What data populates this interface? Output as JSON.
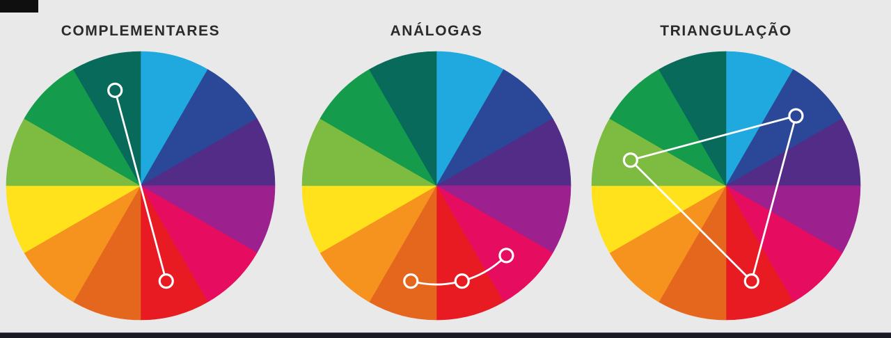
{
  "page": {
    "background_color": "#E9E9E9",
    "corner_mark_color": "#0F0F0F",
    "bottom_bar_color": "#1A1A25",
    "title_color": "#2B2B2B"
  },
  "wheel_style": {
    "radius": 193,
    "segment_count": 12,
    "segment_angle_deg": 30,
    "marker_orbit_radius": 142,
    "marker_circle_radius": 9.5,
    "marker_stroke_color": "#FFFFFF",
    "marker_stroke_width": 3.2,
    "connector_stroke_color": "#FFFFFF",
    "connector_stroke_width": 2.8
  },
  "wheel_segments": [
    {
      "name": "cyan",
      "color": "#1FA9DE",
      "start_angle": 0,
      "end_angle": 30
    },
    {
      "name": "navy-blue",
      "color": "#2B4798",
      "start_angle": 30,
      "end_angle": 60
    },
    {
      "name": "violet",
      "color": "#532C87",
      "start_angle": 60,
      "end_angle": 90
    },
    {
      "name": "purple-magenta",
      "color": "#9C208D",
      "start_angle": 90,
      "end_angle": 120
    },
    {
      "name": "crimson-pink",
      "color": "#E60D60",
      "start_angle": 120,
      "end_angle": 150
    },
    {
      "name": "red",
      "color": "#E81B23",
      "start_angle": 150,
      "end_angle": 180
    },
    {
      "name": "dark-orange",
      "color": "#E5671E",
      "start_angle": 180,
      "end_angle": 210
    },
    {
      "name": "orange",
      "color": "#F6921E",
      "start_angle": 210,
      "end_angle": 240
    },
    {
      "name": "yellow",
      "color": "#FFE11C",
      "start_angle": 240,
      "end_angle": 270
    },
    {
      "name": "lime-green",
      "color": "#7DBB41",
      "start_angle": 270,
      "end_angle": 300
    },
    {
      "name": "green",
      "color": "#149B4B",
      "start_angle": 300,
      "end_angle": 330
    },
    {
      "name": "dark-teal",
      "color": "#076A5B",
      "start_angle": 330,
      "end_angle": 360
    }
  ],
  "chart_data": [
    {
      "type": "pie",
      "title": "COMPLEMENTARES",
      "scheme": "complementary",
      "connector": "line",
      "selected_segments": [
        "dark-teal",
        "red"
      ],
      "markers": [
        {
          "angle": 345,
          "segment": "dark-teal"
        },
        {
          "angle": 165,
          "segment": "red"
        }
      ]
    },
    {
      "type": "pie",
      "title": "ANÁLOGAS",
      "scheme": "analogous",
      "connector": "arc",
      "selected_segments": [
        "dark-orange",
        "red",
        "crimson-pink"
      ],
      "markers": [
        {
          "angle": 195,
          "segment": "dark-orange"
        },
        {
          "angle": 165,
          "segment": "red"
        },
        {
          "angle": 135,
          "segment": "crimson-pink"
        }
      ]
    },
    {
      "type": "pie",
      "title": "TRIANGULAÇÃO",
      "scheme": "triadic",
      "connector": "triangle",
      "selected_segments": [
        "lime-green",
        "navy-blue",
        "red"
      ],
      "markers": [
        {
          "angle": 285,
          "segment": "lime-green"
        },
        {
          "angle": 45,
          "segment": "navy-blue"
        },
        {
          "angle": 165,
          "segment": "red"
        }
      ]
    }
  ]
}
